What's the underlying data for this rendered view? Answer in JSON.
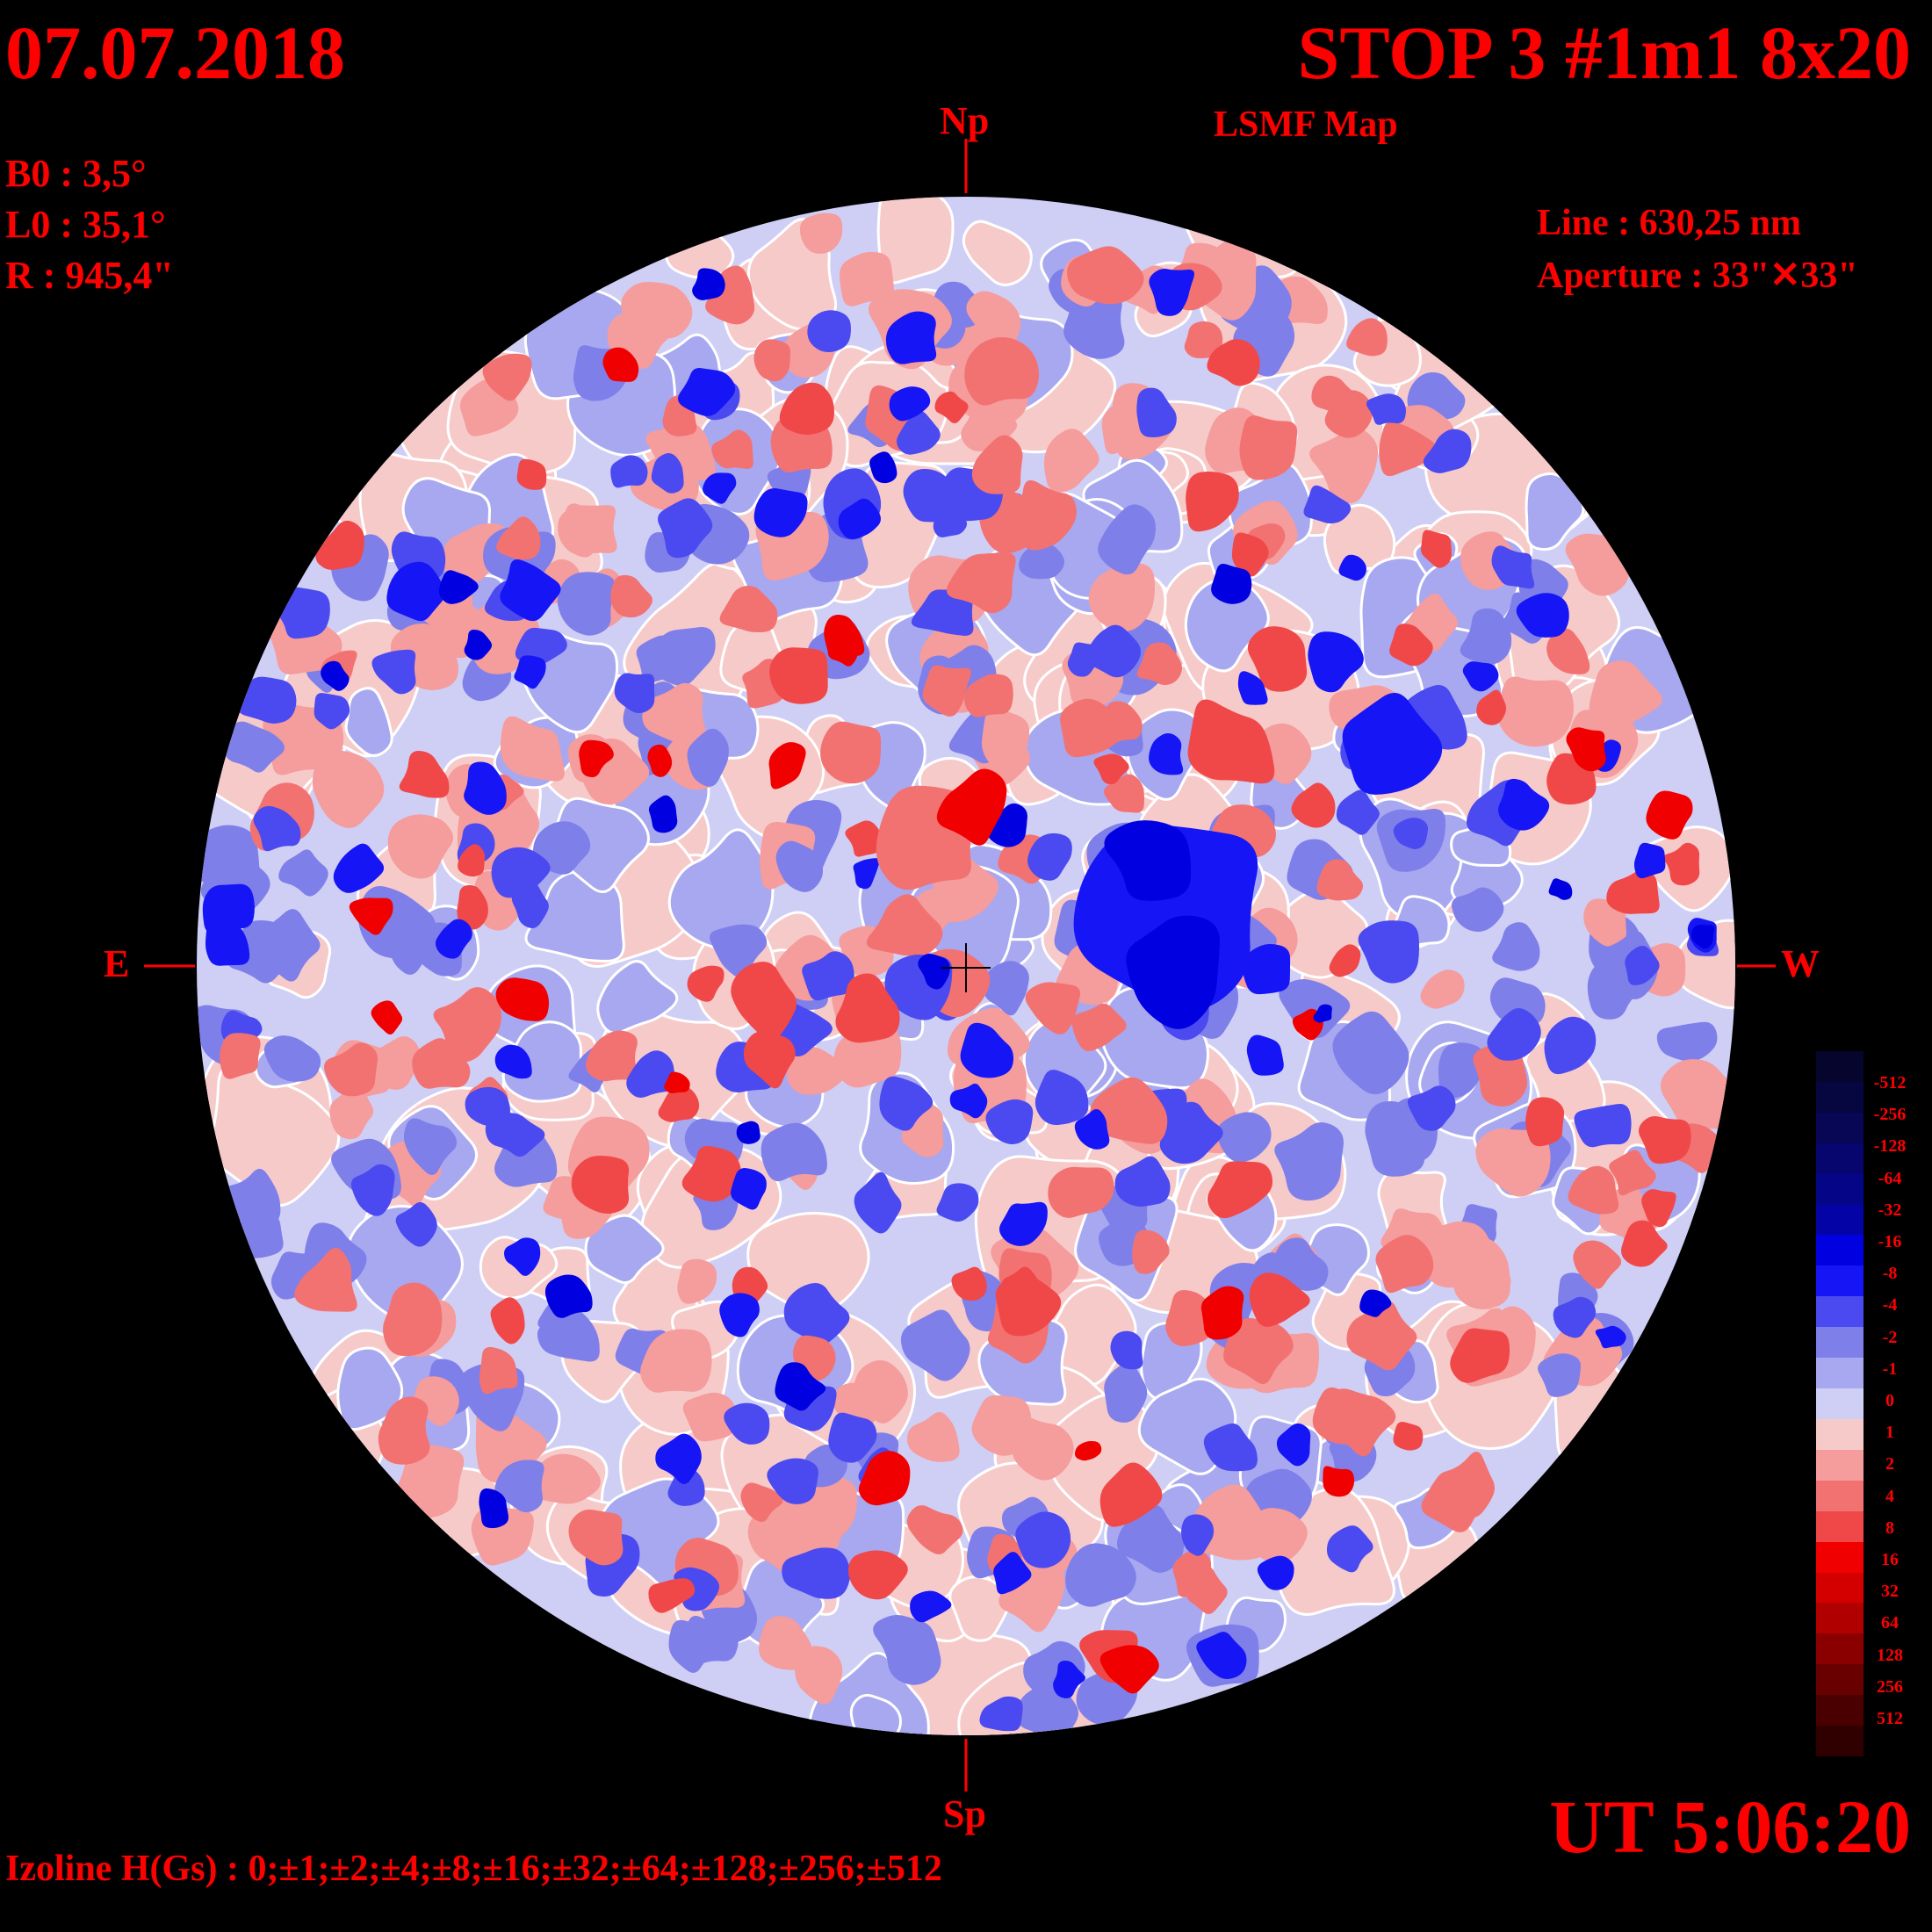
{
  "header": {
    "date": "07.07.2018",
    "title": "STOP 3 #1m1 8x20",
    "subtitle": "LSMF  Map",
    "time": "UT 5:06:20"
  },
  "params": {
    "b0": "B0 : 3,5°",
    "l0": "L0 : 35,1°",
    "radius": "R  : 945,4\"",
    "line": "Line :  630,25 nm",
    "aperture": "Aperture : 33\"✕33\""
  },
  "directions": {
    "north": "Np",
    "south": "Sp",
    "east": "E",
    "west": "W"
  },
  "footer": {
    "isoline": "Izoline H(Gs) : 0;±1;±2;±4;±8;±16;±32;±64;±128;±256;±512"
  },
  "colorbar": {
    "labels": [
      "-512",
      "-256",
      "-128",
      "-64",
      "-32",
      "-16",
      "-8",
      "-4",
      "-2",
      "-1",
      "0",
      "1",
      "2",
      "4",
      "8",
      "16",
      "32",
      "64",
      "128",
      "256",
      "512"
    ],
    "colors": [
      "#05052e",
      "#060640",
      "#070756",
      "#06066e",
      "#050588",
      "#0404a6",
      "#0000e0",
      "#1515f5",
      "#4a4af0",
      "#7f7fea",
      "#a8a8f0",
      "#cfcff6",
      "#f7caca",
      "#f59c9c",
      "#f27272",
      "#f04848",
      "#f00000",
      "#d40000",
      "#b00000",
      "#8a0000",
      "#680000",
      "#4a0000",
      "#300000"
    ]
  }
}
